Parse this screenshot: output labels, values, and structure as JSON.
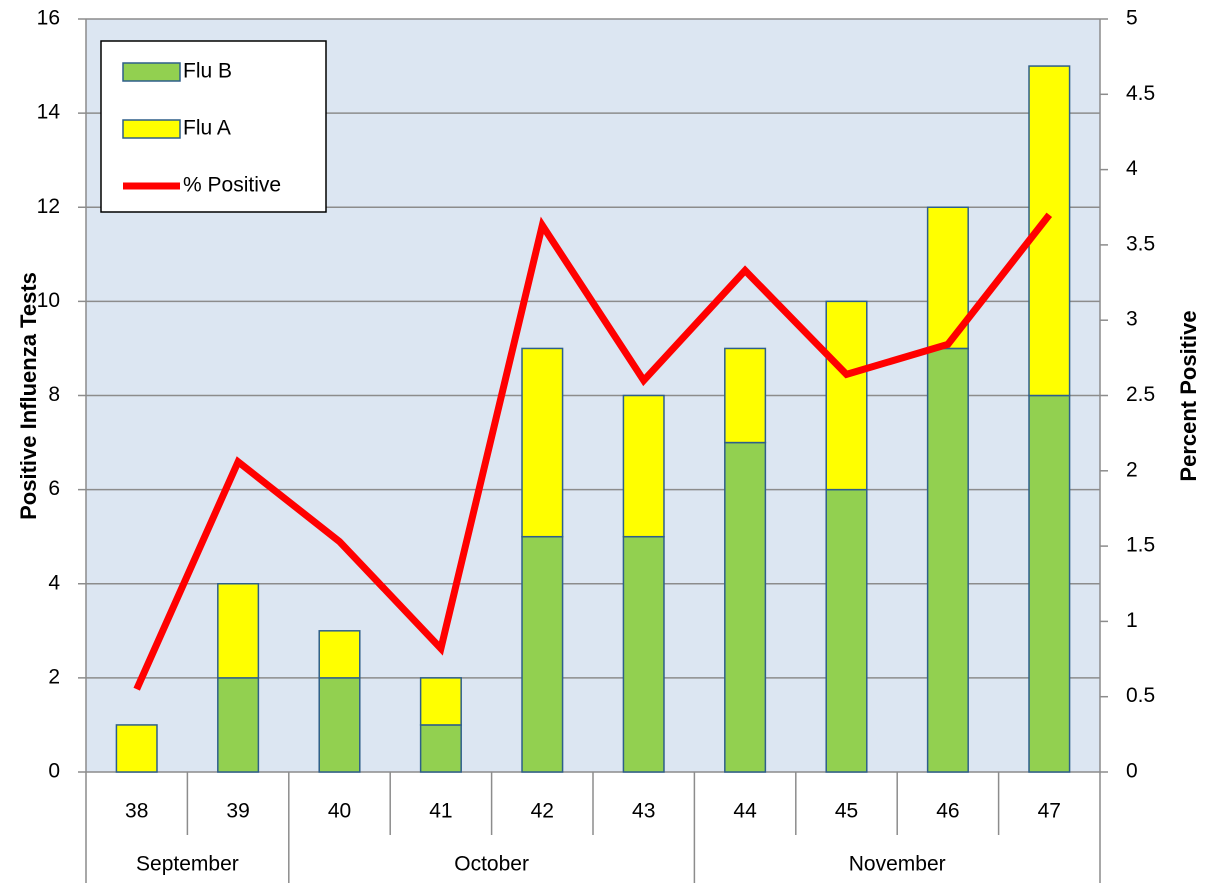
{
  "chart_data": {
    "type": "bar",
    "y_label": "Positive Influenza Tests",
    "y2_label": "Percent Positive",
    "categories": [
      "38",
      "39",
      "40",
      "41",
      "42",
      "43",
      "44",
      "45",
      "46",
      "47"
    ],
    "group_labels": [
      "September",
      "October",
      "November"
    ],
    "group_sizes": [
      2,
      4,
      4
    ],
    "stacked": true,
    "series": [
      {
        "name": "Flu B",
        "type": "bar",
        "color": "#92d050",
        "values": [
          0,
          2,
          2,
          1,
          5,
          5,
          7,
          6,
          9,
          8
        ]
      },
      {
        "name": "Flu A",
        "type": "bar",
        "color": "#ffff00",
        "values": [
          1,
          2,
          1,
          1,
          4,
          3,
          2,
          4,
          3,
          7
        ]
      },
      {
        "name": "% Positive",
        "type": "line",
        "axis": "y2",
        "color": "#ff0000",
        "values": [
          0.55,
          2.06,
          1.53,
          0.82,
          3.63,
          2.6,
          3.33,
          2.64,
          2.84,
          3.7
        ]
      }
    ],
    "ylim": [
      0,
      16
    ],
    "yticks": [
      0,
      2,
      4,
      6,
      8,
      10,
      12,
      14,
      16
    ],
    "y2lim": [
      0,
      5
    ],
    "y2ticks": [
      0,
      0.5,
      1,
      1.5,
      2,
      2.5,
      3,
      3.5,
      4,
      4.5,
      5
    ],
    "grid": true,
    "legend": "top-left"
  }
}
